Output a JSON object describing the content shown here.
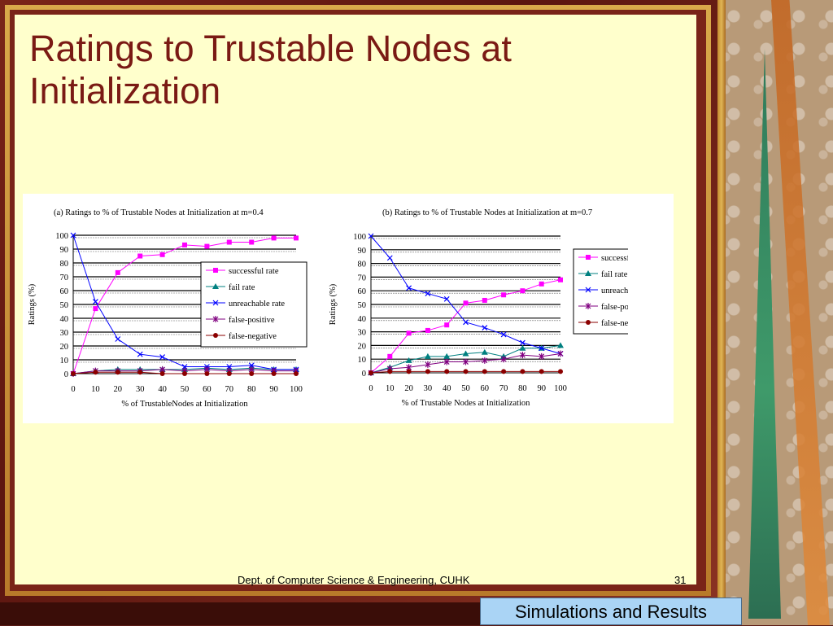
{
  "slide": {
    "title": "Ratings to Trustable Nodes at Initialization",
    "footer": "Dept. of Computer Science & Engineering, CUHK",
    "page_number": "31",
    "section_label": "Simulations and Results"
  },
  "colors": {
    "successful rate": "#ff00ff",
    "fail rate": "#008080",
    "unreachable rate": "#0000ff",
    "false-positive": "#800080",
    "false-negative": "#8b0000"
  },
  "chart_data": [
    {
      "type": "line",
      "title": "(a) Ratings to % of Trustable Nodes at Initialization at m=0.4",
      "xlabel": "% of TrustableNodes at Initialization",
      "ylabel": "Ratings (%)",
      "x": [
        0,
        10,
        20,
        30,
        40,
        50,
        60,
        70,
        80,
        90,
        100
      ],
      "ylim": [
        0,
        100
      ],
      "yticks": [
        0,
        10,
        20,
        30,
        40,
        50,
        60,
        70,
        80,
        90,
        100
      ],
      "legend_position": "right",
      "series": [
        {
          "name": "successful rate",
          "marker": "square",
          "values": [
            0,
            47,
            73,
            85,
            86,
            93,
            92,
            95,
            95,
            98,
            98
          ]
        },
        {
          "name": "fail rate",
          "marker": "triangle",
          "values": [
            0,
            2,
            3,
            3,
            3,
            3,
            4,
            3,
            4,
            3,
            3
          ]
        },
        {
          "name": "unreachable rate",
          "marker": "x",
          "values": [
            100,
            52,
            25,
            14,
            12,
            5,
            5,
            5,
            6,
            3,
            3
          ]
        },
        {
          "name": "false-positive",
          "marker": "star",
          "values": [
            0,
            2,
            2,
            2,
            3,
            2,
            3,
            2,
            3,
            2,
            2
          ]
        },
        {
          "name": "false-negative",
          "marker": "circle",
          "values": [
            0,
            1,
            1,
            1,
            0,
            0,
            0,
            0,
            0,
            0,
            0
          ]
        }
      ]
    },
    {
      "type": "line",
      "title": "(b) Ratings to % of Trustable Nodes at Initialization at m=0.7",
      "xlabel": "% of Trustable Nodes at Initialization",
      "ylabel": "Ratings (%)",
      "x": [
        0,
        10,
        20,
        30,
        40,
        50,
        60,
        70,
        80,
        90,
        100
      ],
      "ylim": [
        0,
        100
      ],
      "yticks": [
        0,
        10,
        20,
        30,
        40,
        50,
        60,
        70,
        80,
        90,
        100
      ],
      "legend_position": "right",
      "series": [
        {
          "name": "successful rate",
          "marker": "square",
          "values": [
            0,
            12,
            29,
            31,
            35,
            51,
            53,
            57,
            60,
            65,
            68
          ]
        },
        {
          "name": "fail rate",
          "marker": "triangle",
          "values": [
            0,
            4,
            9,
            12,
            12,
            14,
            15,
            12,
            18,
            18,
            20
          ]
        },
        {
          "name": "unreachable rate",
          "marker": "x",
          "values": [
            100,
            84,
            62,
            58,
            54,
            37,
            33,
            28,
            22,
            18,
            14
          ]
        },
        {
          "name": "false-positive",
          "marker": "star",
          "values": [
            0,
            3,
            4,
            6,
            8,
            8,
            9,
            10,
            13,
            12,
            14
          ]
        },
        {
          "name": "false-negative",
          "marker": "circle",
          "values": [
            0,
            1,
            1,
            1,
            1,
            1,
            1,
            1,
            1,
            1,
            1
          ]
        }
      ]
    }
  ]
}
